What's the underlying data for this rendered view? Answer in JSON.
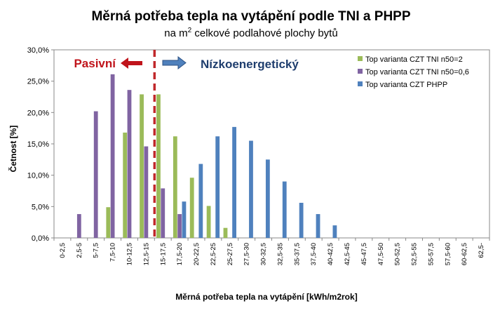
{
  "chart_data": {
    "type": "bar",
    "title": "Měrná potřeba tepla na vytápění podle TNI a PHPP",
    "subtitle_prefix": "na m",
    "subtitle_sup": "2",
    "subtitle_suffix": " celkové podlahové plochy bytů",
    "xlabel": "Měrná potřeba tepla na vytápění  [kWh/m2rok]",
    "ylabel": "Četnost [%]",
    "ylim": [
      0,
      30
    ],
    "yticks": [
      0,
      5,
      10,
      15,
      20,
      25,
      30
    ],
    "ytick_labels": [
      "0,0%",
      "5,0%",
      "10,0%",
      "15,0%",
      "20,0%",
      "25,0%",
      "30,0%"
    ],
    "categories": [
      "0-2,5",
      "2,5-5",
      "5-7,5",
      "7,5-10",
      "10-12,5",
      "12,5-15",
      "15-17,5",
      "17,5-20",
      "20-22,5",
      "22,5-25",
      "25-27,5",
      "27,5-30",
      "30-32,5",
      "32,5-35",
      "35-37,5",
      "37,5-40",
      "40-42,5",
      "42,5-45",
      "45-47,5",
      "47,5-50",
      "50-52,5",
      "52,5-55",
      "55-57,5",
      "57,5-60",
      "60-62,5",
      "62,5-"
    ],
    "series": [
      {
        "name": "Top varianta CZT TNI n50=2",
        "color": "#9BBB59",
        "values": [
          0,
          0,
          0,
          4.9,
          16.8,
          22.9,
          22.9,
          16.2,
          9.6,
          5.1,
          1.6,
          0,
          0,
          0,
          0,
          0,
          0,
          0,
          0,
          0,
          0,
          0,
          0,
          0,
          0,
          0
        ]
      },
      {
        "name": "Top varianta CZT TNI n50=0,6",
        "color": "#8064A2",
        "values": [
          0,
          3.8,
          20.2,
          26.1,
          23.6,
          14.6,
          7.9,
          3.8,
          0,
          0,
          0,
          0,
          0,
          0,
          0,
          0,
          0,
          0,
          0,
          0,
          0,
          0,
          0,
          0,
          0,
          0
        ]
      },
      {
        "name": "Top varianta CZT PHPP",
        "color": "#4F81BD",
        "values": [
          0,
          0,
          0,
          0,
          0,
          0,
          0,
          5.8,
          11.8,
          16.2,
          17.7,
          15.5,
          12.5,
          9.0,
          5.6,
          3.8,
          2.0,
          0,
          0,
          0,
          0,
          0,
          0,
          0,
          0,
          0
        ]
      }
    ],
    "grid": false,
    "legend_position": "top-right",
    "annotations": {
      "left_label": "Pasivní",
      "right_label": "Nízkoenergetický",
      "left_color": "#C0141B",
      "right_color": "#1F3E6E",
      "divider_color": "#C0282B"
    }
  }
}
